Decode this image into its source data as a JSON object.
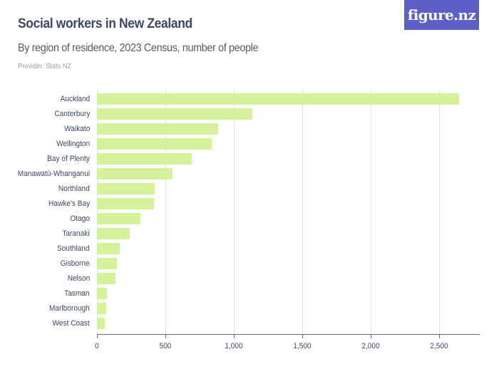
{
  "header": {
    "title": "Social workers in New Zealand",
    "subtitle": "By region of residence, 2023 Census, number of people",
    "provider": "Provider: Stats NZ",
    "logo_text": "figure.nz"
  },
  "colors": {
    "bar": "#d3f29a",
    "title": "#3b4766",
    "logo_bg": "#5b5fc7"
  },
  "chart_data": {
    "type": "bar",
    "orientation": "horizontal",
    "title": "Social workers in New Zealand",
    "subtitle": "By region of residence, 2023 Census, number of people",
    "xlabel": "",
    "ylabel": "",
    "categories": [
      "Auckland",
      "Canterbury",
      "Waikato",
      "Wellington",
      "Bay of Plenty",
      "Manawatū-Whanganui",
      "Northland",
      "Hawke's Bay",
      "Otago",
      "Taranaki",
      "Southland",
      "Gisborne",
      "Nelson",
      "Tasman",
      "Marlborough",
      "West Coast"
    ],
    "values": [
      2648,
      1137,
      887,
      840,
      695,
      551,
      424,
      415,
      320,
      238,
      165,
      144,
      137,
      73,
      66,
      56
    ],
    "xlim": [
      0,
      2800
    ],
    "ticks": [
      0,
      500,
      1000,
      1500,
      2000,
      2500
    ],
    "tick_labels": [
      "0",
      "500",
      "1,000",
      "1,500",
      "2,000",
      "2,500"
    ],
    "grid": true,
    "legend": "none"
  }
}
